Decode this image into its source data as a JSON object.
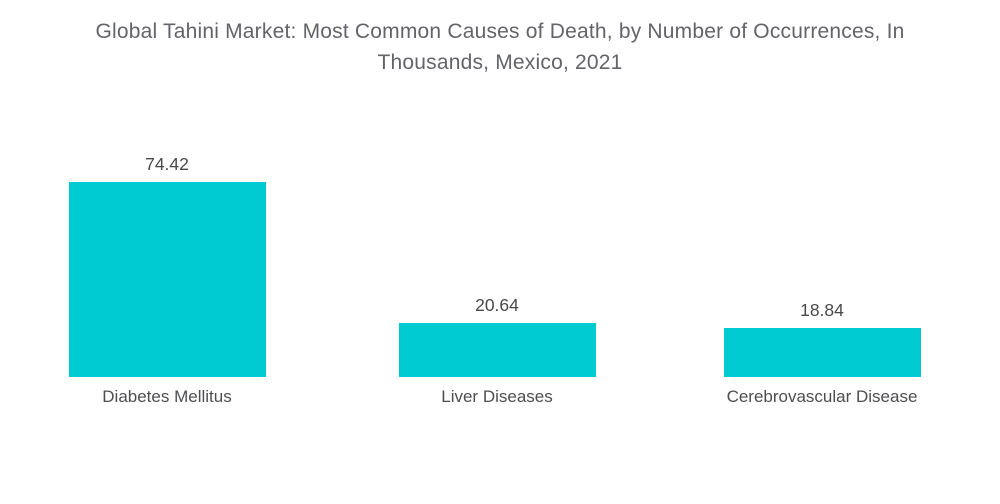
{
  "chart_data": {
    "type": "bar",
    "title": "Global Tahini Market: Most Common Causes of Death, by Number of Occurrences, In Thousands, Mexico, 2021",
    "categories": [
      "Diabetes Mellitus",
      "Liver Diseases",
      "Cerebrovascular Disease"
    ],
    "values": [
      74.42,
      20.64,
      18.84
    ],
    "value_labels": [
      "74.42",
      "20.64",
      "18.84"
    ],
    "xlabel": "",
    "ylabel": "",
    "ylim": [
      0,
      80
    ],
    "grid": false,
    "legend": "none",
    "axes_visible": false,
    "bar_color": "#00CBD2",
    "title_color": "#636468",
    "value_label_color": "#48494b",
    "category_label_color": "#4d4e50",
    "background_color": "#FFFFFF"
  }
}
